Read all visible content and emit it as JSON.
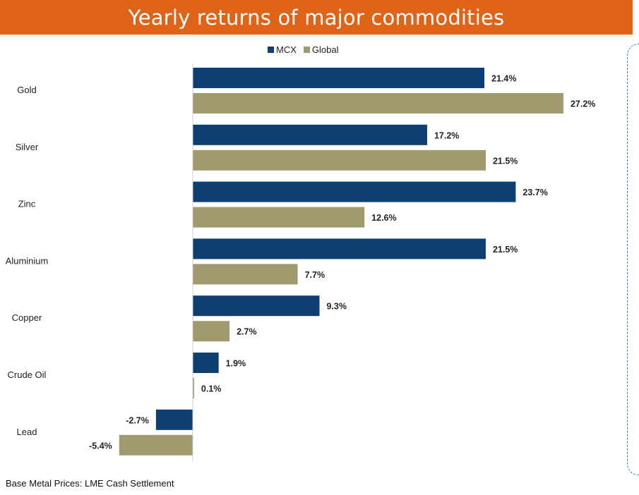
{
  "chart_data": {
    "type": "bar",
    "orientation": "horizontal",
    "title": "Yearly returns of major commodities",
    "categories": [
      "Gold",
      "Silver",
      "Zinc",
      "Aluminium",
      "Copper",
      "Crude Oil",
      "Lead"
    ],
    "series": [
      {
        "name": "MCX",
        "color": "#0e3f73",
        "values": [
          21.4,
          17.2,
          23.7,
          21.5,
          9.3,
          1.9,
          -2.7
        ]
      },
      {
        "name": "Global",
        "color": "#a09a6e",
        "values": [
          27.2,
          21.5,
          12.6,
          7.7,
          2.7,
          0.1,
          -5.4
        ]
      }
    ],
    "value_labels": {
      "MCX": [
        "21.4%",
        "17.2%",
        "23.7%",
        "21.5%",
        "9.3%",
        "1.9%",
        "-2.7%"
      ],
      "Global": [
        "27.2%",
        "21.5%",
        "12.6%",
        "7.7%",
        "2.7%",
        "0.1%",
        "-5.4%"
      ]
    },
    "legend_position": "top-center",
    "grid": false,
    "footnote": "Base Metal Prices: LME Cash Settlement"
  },
  "colors": {
    "title_background": "#e06418",
    "frame_border": "#3a78b5"
  }
}
